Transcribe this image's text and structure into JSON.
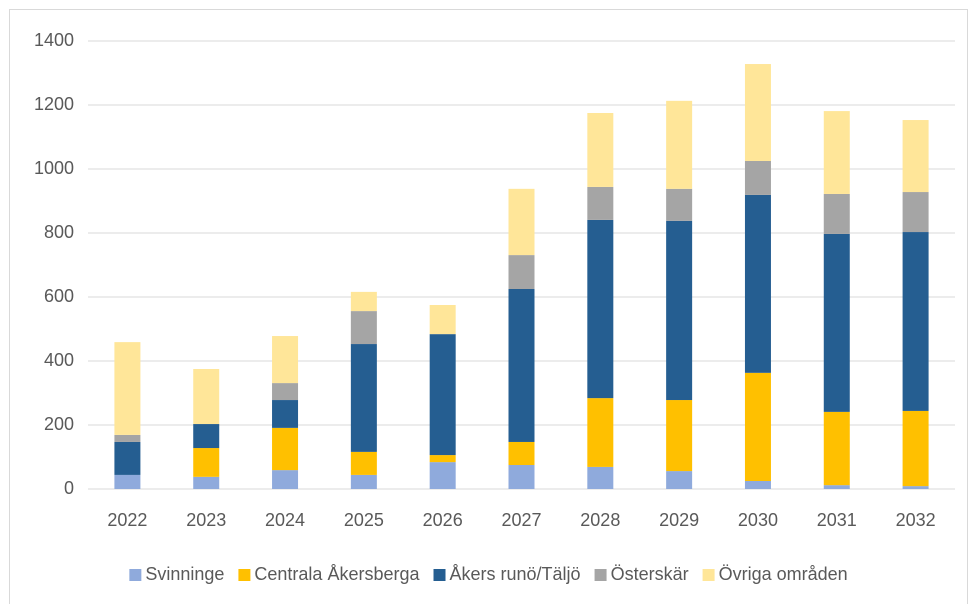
{
  "chart_data": {
    "type": "bar",
    "stacked": true,
    "categories": [
      "2022",
      "2023",
      "2024",
      "2025",
      "2026",
      "2027",
      "2028",
      "2029",
      "2030",
      "2031",
      "2032"
    ],
    "series": [
      {
        "name": "Svinninge",
        "color": "#8faadc",
        "values": [
          44,
          38,
          59,
          44,
          84,
          75,
          69,
          56,
          25,
          12,
          9
        ]
      },
      {
        "name": "Centrala Åkersberga",
        "color": "#ffc000",
        "values": [
          0,
          90,
          132,
          72,
          22,
          72,
          215,
          222,
          338,
          229,
          235
        ]
      },
      {
        "name": "Åkers runö/Täljö",
        "color": "#255e91",
        "values": [
          103,
          75,
          87,
          337,
          378,
          478,
          557,
          560,
          556,
          556,
          559
        ]
      },
      {
        "name": "Österskär",
        "color": "#a5a5a5",
        "values": [
          22,
          0,
          53,
          103,
          0,
          106,
          103,
          100,
          106,
          125,
          125
        ]
      },
      {
        "name": "Övriga områden",
        "color": "#ffe699",
        "values": [
          290,
          172,
          147,
          60,
          91,
          207,
          231,
          275,
          303,
          259,
          225
        ]
      }
    ],
    "ylim": [
      0,
      1400
    ],
    "yticks": [
      0,
      200,
      400,
      600,
      800,
      1000,
      1200,
      1400
    ],
    "grid": true,
    "legend": "bottom"
  }
}
